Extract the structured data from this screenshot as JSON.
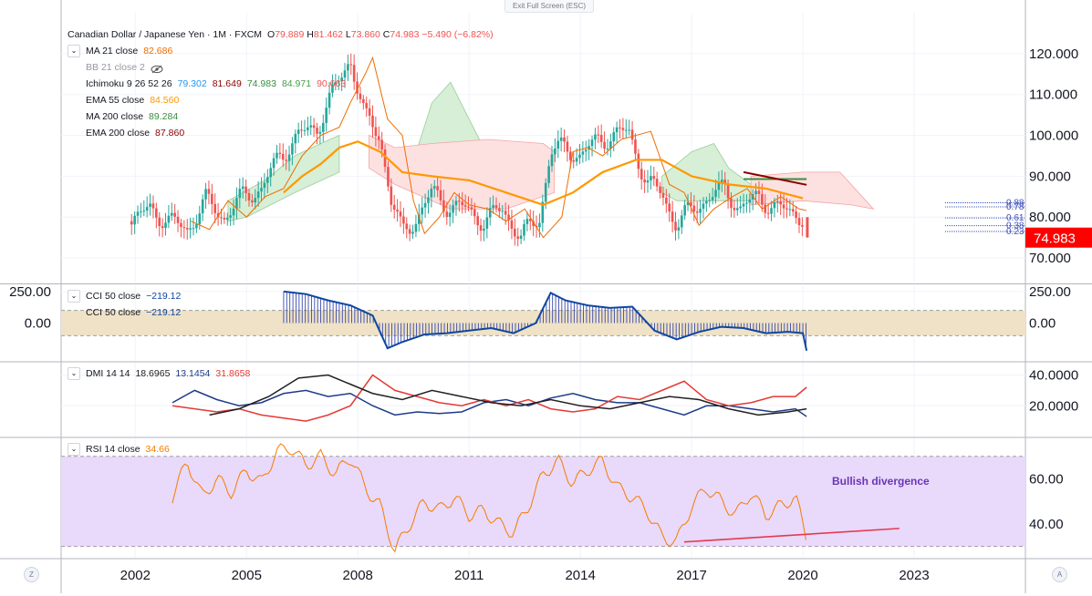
{
  "toolbar": {
    "exit_fullscreen": "Exit Full Screen (ESC)"
  },
  "header": {
    "symbol": "Canadian Dollar / Japanese Yen · 1M · FXCM",
    "o_label": "O",
    "o_val": "79.889",
    "h_label": "H",
    "h_val": "81.462",
    "l_label": "L",
    "l_val": "73.860",
    "c_label": "C",
    "c_val": "74.983",
    "change": "−5.490 (−6.82%)"
  },
  "indicators": {
    "ma21": {
      "label": "MA 21 close",
      "value": "82.686"
    },
    "bb": {
      "label": "BB 21 close 2"
    },
    "ichimoku": {
      "label": "Ichimoku 9 26 52 26",
      "v1": "79.302",
      "v2": "81.649",
      "v3": "74.983",
      "v4": "84.971",
      "v5": "90.663"
    },
    "ema55": {
      "label": "EMA 55 close",
      "value": "84.560"
    },
    "ma200": {
      "label": "MA 200 close",
      "value": "89.284"
    },
    "ema200": {
      "label": "EMA 200 close",
      "value": "87.860"
    },
    "cci": {
      "label": "CCI 50 close",
      "value": "−219.12"
    },
    "cci2": {
      "label": "CCI 50 close",
      "value": "−219.12"
    },
    "dmi": {
      "label": "DMI 14 14",
      "v1": "18.6965",
      "v2": "13.1454",
      "v3": "31.8658"
    },
    "rsi": {
      "label": "RSI 14 close",
      "value": "34.66"
    }
  },
  "annotation": {
    "text": "Bullish divergence"
  },
  "price_badge": "74.983",
  "fib_labels": [
    "0.88",
    "0.78",
    "0.61",
    "0.38",
    "0.23"
  ],
  "corner": {
    "left": "Z",
    "right": "A"
  },
  "colors": {
    "up": "#26a69a",
    "down": "#ef5350",
    "ema55": "#ff9800",
    "ma21": "#ef6c00",
    "cci": "#0d47a1",
    "dmi_plus": "#1e3a8a",
    "dmi_minus": "#e53935",
    "adx": "#212121",
    "rsi": "#f57c00",
    "rsi_band": "#e9d9fb",
    "cci_band": "#efe2c6",
    "annotation": "#6a36b5"
  },
  "chart_data": [
    {
      "type": "line",
      "title": "Canadian Dollar / Japanese Yen · 1M · FXCM",
      "ylim": [
        64,
        130
      ],
      "yticks": [
        70,
        80,
        90,
        100,
        110,
        120
      ],
      "ytick_labels": [
        "70.000",
        "80.000",
        "90.000",
        "100.000",
        "110.000",
        "120.000"
      ],
      "xlim": [
        2000.0,
        2026.0
      ],
      "xticks": [
        2002,
        2005,
        2008,
        2011,
        2014,
        2017,
        2020,
        2023
      ],
      "xtick_labels": [
        "2002",
        "2005",
        "2008",
        "2011",
        "2014",
        "2017",
        "2020",
        "2023"
      ],
      "series": [
        {
          "name": "close",
          "x": [
            2001.9,
            2002.4,
            2002.9,
            2003.4,
            2003.9,
            2004.4,
            2004.9,
            2005.4,
            2005.9,
            2006.4,
            2006.9,
            2007.2,
            2007.6,
            2007.8,
            2008.2,
            2008.6,
            2008.9,
            2009.2,
            2009.6,
            2010.0,
            2010.4,
            2010.9,
            2011.4,
            2011.9,
            2012.4,
            2012.9,
            2013.2,
            2013.6,
            2014.0,
            2014.5,
            2014.9,
            2015.3,
            2015.8,
            2016.2,
            2016.6,
            2017.0,
            2017.5,
            2017.9,
            2018.3,
            2018.8,
            2019.3,
            2019.8,
            2020.0,
            2020.1
          ],
          "y": [
            79,
            82,
            79,
            77,
            84,
            80,
            85,
            87,
            95,
            100,
            102,
            108,
            115,
            119,
            104,
            100,
            84,
            76,
            80,
            86,
            83,
            82,
            79,
            82,
            75,
            80,
            96,
            97,
            95,
            99,
            100,
            101,
            88,
            86,
            78,
            82,
            85,
            87,
            82,
            85,
            82,
            81,
            80,
            75
          ]
        },
        {
          "name": "EMA 55 close",
          "x": [
            2006.0,
            2006.5,
            2007.0,
            2007.5,
            2008.0,
            2008.6,
            2009.2,
            2010.0,
            2011.0,
            2012.0,
            2013.0,
            2013.8,
            2014.6,
            2015.5,
            2016.2,
            2017.0,
            2018.0,
            2019.0,
            2020.0
          ],
          "y": [
            86,
            90,
            93,
            97,
            98.5,
            96,
            91,
            90,
            89,
            86,
            83,
            86,
            91,
            94,
            94,
            90,
            88,
            87,
            84.6
          ]
        }
      ]
    },
    {
      "type": "line",
      "title": "CCI 50 close",
      "ylim": [
        -300,
        300
      ],
      "yticks": [
        0,
        250
      ],
      "ytick_labels": [
        "0.00",
        "250.00"
      ],
      "band": [
        -100,
        100
      ],
      "series": [
        {
          "name": "CCI 50 close",
          "x": [
            2006.0,
            2006.6,
            2007.2,
            2007.8,
            2008.4,
            2008.8,
            2009.2,
            2009.8,
            2010.4,
            2011.0,
            2011.6,
            2012.2,
            2012.8,
            2013.2,
            2013.6,
            2014.2,
            2014.8,
            2015.4,
            2016.0,
            2016.6,
            2017.2,
            2017.8,
            2018.4,
            2019.0,
            2019.6,
            2020.0,
            2020.1
          ],
          "y": [
            250,
            230,
            180,
            140,
            60,
            -200,
            -150,
            -90,
            -80,
            -60,
            -40,
            -80,
            0,
            240,
            180,
            140,
            120,
            130,
            -60,
            -130,
            -70,
            -30,
            -40,
            -80,
            -70,
            -80,
            -219
          ]
        }
      ]
    },
    {
      "type": "line",
      "title": "DMI 14 14",
      "ylim": [
        0,
        48
      ],
      "yticks": [
        20,
        40
      ],
      "ytick_labels": [
        "20.0000",
        "40.0000"
      ],
      "series": [
        {
          "name": "+DI",
          "x": [
            2003.0,
            2003.6,
            2004.2,
            2004.8,
            2005.4,
            2006.0,
            2006.6,
            2007.2,
            2007.8,
            2008.4,
            2009.0,
            2009.6,
            2010.2,
            2010.8,
            2011.4,
            2012.0,
            2012.6,
            2013.2,
            2013.8,
            2014.4,
            2015.0,
            2015.6,
            2016.2,
            2016.8,
            2017.4,
            2018.0,
            2018.6,
            2019.2,
            2019.8,
            2020.1
          ],
          "y": [
            22,
            30,
            24,
            20,
            22,
            28,
            30,
            26,
            28,
            20,
            14,
            16,
            15,
            16,
            22,
            24,
            20,
            25,
            28,
            24,
            22,
            22,
            18,
            14,
            20,
            20,
            18,
            16,
            18,
            13
          ]
        },
        {
          "name": "-DI",
          "x": [
            2003.0,
            2003.6,
            2004.2,
            2004.8,
            2005.4,
            2006.0,
            2006.6,
            2007.2,
            2007.8,
            2008.4,
            2009.0,
            2009.6,
            2010.2,
            2010.8,
            2011.4,
            2012.0,
            2012.6,
            2013.2,
            2013.8,
            2014.4,
            2015.0,
            2015.6,
            2016.2,
            2016.8,
            2017.4,
            2018.0,
            2018.6,
            2019.2,
            2019.8,
            2020.1
          ],
          "y": [
            20,
            18,
            16,
            18,
            14,
            12,
            10,
            14,
            20,
            40,
            30,
            26,
            22,
            20,
            24,
            20,
            24,
            18,
            16,
            18,
            26,
            24,
            30,
            36,
            24,
            20,
            22,
            26,
            26,
            32
          ]
        },
        {
          "name": "ADX",
          "x": [
            2004.0,
            2004.8,
            2005.6,
            2006.4,
            2007.2,
            2007.8,
            2008.4,
            2009.2,
            2010.0,
            2010.8,
            2011.6,
            2012.4,
            2013.2,
            2014.0,
            2014.8,
            2015.6,
            2016.4,
            2017.2,
            2018.0,
            2018.8,
            2019.6,
            2020.1
          ],
          "y": [
            14,
            18,
            26,
            38,
            40,
            34,
            28,
            24,
            30,
            26,
            22,
            20,
            24,
            20,
            18,
            22,
            26,
            24,
            18,
            14,
            16,
            18
          ]
        }
      ]
    },
    {
      "type": "line",
      "title": "RSI 14 close",
      "ylim": [
        25,
        78
      ],
      "yticks": [
        40,
        60
      ],
      "ytick_labels": [
        "40.00",
        "60.00"
      ],
      "band": [
        30,
        70
      ],
      "series": [
        {
          "name": "RSI 14 close",
          "x": [
            2003.0,
            2003.4,
            2003.8,
            2004.2,
            2004.6,
            2005.0,
            2005.4,
            2005.8,
            2006.2,
            2006.6,
            2007.0,
            2007.4,
            2007.8,
            2008.2,
            2008.6,
            2009.0,
            2009.4,
            2009.8,
            2010.2,
            2010.6,
            2011.0,
            2011.4,
            2011.8,
            2012.2,
            2012.6,
            2013.0,
            2013.4,
            2013.8,
            2014.2,
            2014.6,
            2015.0,
            2015.4,
            2015.8,
            2016.2,
            2016.6,
            2017.0,
            2017.4,
            2017.8,
            2018.2,
            2018.6,
            2019.0,
            2019.4,
            2019.8,
            2020.1
          ],
          "y": [
            52,
            68,
            52,
            60,
            54,
            64,
            58,
            72,
            74,
            66,
            70,
            62,
            70,
            56,
            48,
            28,
            40,
            50,
            46,
            52,
            44,
            46,
            40,
            36,
            48,
            62,
            68,
            58,
            64,
            68,
            56,
            52,
            46,
            34,
            32,
            48,
            56,
            50,
            44,
            54,
            44,
            48,
            52,
            34
          ]
        }
      ]
    }
  ]
}
